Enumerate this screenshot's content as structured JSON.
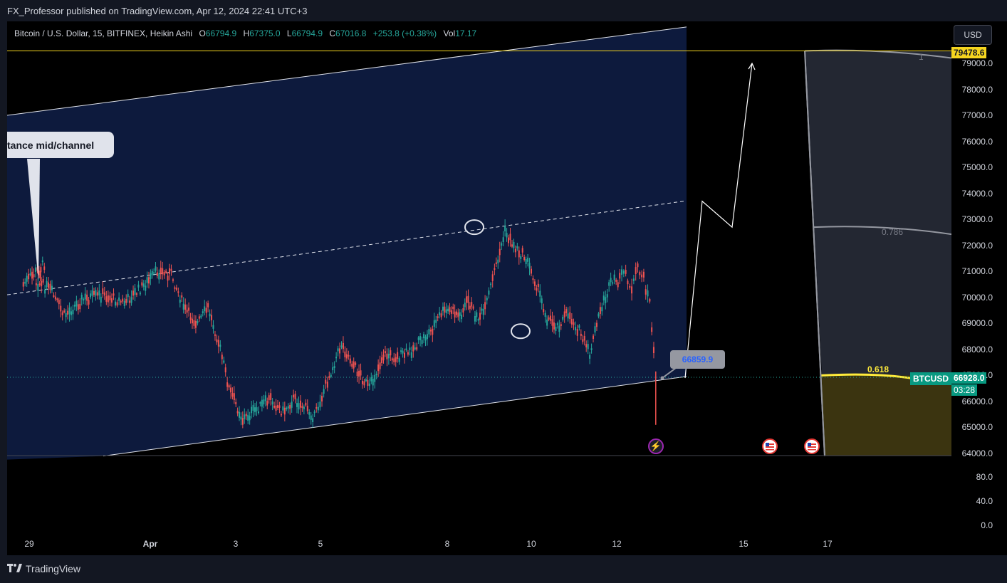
{
  "header": {
    "published_text": "FX_Professor published on TradingView.com, Apr 12, 2024 22:41 UTC+3"
  },
  "legend": {
    "symbol": "Bitcoin / U.S. Dollar, 15, BITFINEX, Heikin Ashi",
    "open_label": "O",
    "open_value": "66794.9",
    "high_label": "H",
    "high_value": "67375.0",
    "low_label": "L",
    "low_value": "66794.9",
    "close_label": "C",
    "close_value": "67016.8",
    "change": "+253.8 (+0.38%)",
    "vol_label": "Vol",
    "vol_value": "17.17"
  },
  "toolbar": {
    "currency": "USD"
  },
  "annotations": {
    "callout_text": "tance mid/channel",
    "price_label": "66859.9",
    "fib_1": "1",
    "fib_0786": "0.786",
    "fib_0618": "0.618"
  },
  "badges": {
    "top_price": "79478.6",
    "symbol_tag": "BTCUSD",
    "last_price": "66928.0",
    "countdown": "03:28"
  },
  "colors": {
    "up": "#26a69a",
    "down": "#ef5350",
    "channel_fill": "#0d1a3d",
    "fib_zone": "#3b3410",
    "yellow": "#ffeb3b",
    "badge_yellow": "#f5d51f"
  },
  "icons": {
    "brand": "tradingview-logo-icon",
    "lightning": "lightning-icon",
    "flag": "us-flag-icon"
  },
  "brand": {
    "name": "TradingView"
  },
  "chart_data": {
    "type": "candlestick",
    "chart_style": "Heikin Ashi",
    "symbol": "BTCUSD",
    "timeframe": "15",
    "exchange": "BITFINEX",
    "y_axis": {
      "ticks": [
        "79000.0",
        "78000.0",
        "77000.0",
        "76000.0",
        "75000.0",
        "74000.0",
        "73000.0",
        "72000.0",
        "71000.0",
        "70000.0",
        "69000.0",
        "68000.0",
        "67000.0",
        "66000.0",
        "65000.0",
        "64000.0"
      ],
      "ylim": [
        63900,
        80500
      ]
    },
    "volume_axis": {
      "ticks": [
        "80.0",
        "40.0",
        "0.0"
      ]
    },
    "x_axis": {
      "ticks": [
        "29",
        "Apr",
        "3",
        "5",
        "8",
        "10",
        "12",
        "15",
        "17"
      ]
    },
    "price_path": [
      {
        "t": "Mar 28",
        "p": 70500
      },
      {
        "t": "Mar 28",
        "p": 71300
      },
      {
        "t": "Mar 29",
        "p": 70600
      },
      {
        "t": "Mar 29",
        "p": 70300
      },
      {
        "t": "Mar 29",
        "p": 69300
      },
      {
        "t": "Mar 30",
        "p": 69900
      },
      {
        "t": "Mar 30",
        "p": 70100
      },
      {
        "t": "Mar 31",
        "p": 69800
      },
      {
        "t": "Mar 31",
        "p": 70500
      },
      {
        "t": "Apr 1",
        "p": 71000
      },
      {
        "t": "Apr 1",
        "p": 70900
      },
      {
        "t": "Apr 1",
        "p": 69500
      },
      {
        "t": "Apr 2",
        "p": 69000
      },
      {
        "t": "Apr 2",
        "p": 69600
      },
      {
        "t": "Apr 2",
        "p": 68300
      },
      {
        "t": "Apr 2",
        "p": 66500
      },
      {
        "t": "Apr 3",
        "p": 65300
      },
      {
        "t": "Apr 3",
        "p": 65700
      },
      {
        "t": "Apr 3",
        "p": 66100
      },
      {
        "t": "Apr 4",
        "p": 65600
      },
      {
        "t": "Apr 4",
        "p": 66100
      },
      {
        "t": "Apr 4",
        "p": 65800
      },
      {
        "t": "Apr 4",
        "p": 65400
      },
      {
        "t": "Apr 5",
        "p": 66800
      },
      {
        "t": "Apr 5",
        "p": 68200
      },
      {
        "t": "Apr 5",
        "p": 67300
      },
      {
        "t": "Apr 6",
        "p": 66500
      },
      {
        "t": "Apr 6",
        "p": 67800
      },
      {
        "t": "Apr 6",
        "p": 67700
      },
      {
        "t": "Apr 7",
        "p": 67900
      },
      {
        "t": "Apr 7",
        "p": 68300
      },
      {
        "t": "Apr 7",
        "p": 68700
      },
      {
        "t": "Apr 7",
        "p": 69400
      },
      {
        "t": "Apr 8",
        "p": 69500
      },
      {
        "t": "Apr 8",
        "p": 69300
      },
      {
        "t": "Apr 8",
        "p": 69900
      },
      {
        "t": "Apr 8",
        "p": 69200
      },
      {
        "t": "Apr 8",
        "p": 69500
      },
      {
        "t": "Apr 9",
        "p": 71000
      },
      {
        "t": "Apr 9",
        "p": 72500
      },
      {
        "t": "Apr 9",
        "p": 71900
      },
      {
        "t": "Apr 9",
        "p": 71500
      },
      {
        "t": "Apr 10",
        "p": 70500
      },
      {
        "t": "Apr 10",
        "p": 69200
      },
      {
        "t": "Apr 10",
        "p": 68900
      },
      {
        "t": "Apr 10",
        "p": 69400
      },
      {
        "t": "Apr 11",
        "p": 68700
      },
      {
        "t": "Apr 11",
        "p": 67800
      },
      {
        "t": "Apr 11",
        "p": 69500
      },
      {
        "t": "Apr 11",
        "p": 70500
      },
      {
        "t": "Apr 12",
        "p": 70700
      },
      {
        "t": "Apr 12",
        "p": 71000
      },
      {
        "t": "Apr 12",
        "p": 70200
      },
      {
        "t": "Apr 12",
        "p": 71200
      },
      {
        "t": "Apr 12",
        "p": 70700
      },
      {
        "t": "Apr 12",
        "p": 69800
      },
      {
        "t": "Apr 12",
        "p": 67016.8
      }
    ],
    "channel": {
      "upper": [
        {
          "t": "Mar 27",
          "p": 77000
        },
        {
          "t": "Apr 14",
          "p": 80400
        }
      ],
      "mid": [
        {
          "t": "Mar 27",
          "p": 70100
        },
        {
          "t": "Apr 13",
          "p": 73700
        }
      ],
      "lower": [
        {
          "t": "Mar 30",
          "p": 63900
        },
        {
          "t": "Apr 14",
          "p": 66959.7
        }
      ]
    },
    "projection": [
      {
        "t": "Apr 13",
        "p": 66900
      },
      {
        "t": "Apr 13",
        "p": 73700
      },
      {
        "t": "Apr 14",
        "p": 72700
      },
      {
        "t": "Apr 15",
        "p": 79000
      }
    ],
    "fib_levels": [
      {
        "level": "1",
        "price": 79478.6
      },
      {
        "level": "0.786",
        "price": 72700
      },
      {
        "level": "0.618",
        "price": 67000
      }
    ],
    "horizontal_line": 79478.6,
    "price_label": 66859.9,
    "last_price": 66928.0,
    "marked_points": [
      {
        "t": "Apr 9",
        "p": 72700
      },
      {
        "t": "Apr 10",
        "p": 68700
      }
    ]
  }
}
